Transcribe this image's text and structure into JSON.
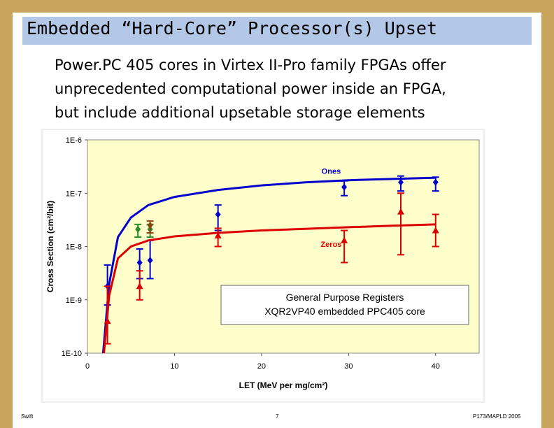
{
  "slide": {
    "title": "Embedded “Hard-Core” Processor(s) Upset",
    "body": "Power.PC 405 cores in Virtex II-Pro family FPGAs offer\nunprecedented computational power inside an FPGA,\nbut include additional upsetable storage elements",
    "footer_left": "Swift",
    "footer_center": "7",
    "footer_right": "P173/MAPLD 2005"
  },
  "colors": {
    "background_frame": "#c9a45c",
    "title_bar": "#b3c7e6",
    "plot_area": "#ffffcc",
    "ones": "#0000cc",
    "zeros": "#dd0000",
    "extra_green": "#2a8a2a",
    "extra_brown": "#8b4513"
  },
  "chart_data": {
    "type": "scatter",
    "xlabel": "LET (MeV per mg/cm²)",
    "ylabel": "Cross Section (cm²/bit)",
    "xlim": [
      0,
      45
    ],
    "ylim": [
      1e-10,
      1e-06
    ],
    "yscale": "log",
    "x_ticks": [
      0,
      10,
      20,
      30,
      40
    ],
    "x_tick_labels": [
      "0",
      "10",
      "20",
      "30",
      "40"
    ],
    "y_ticks": [
      1e-10,
      1e-09,
      1e-08,
      1e-07,
      1e-06
    ],
    "y_tick_labels": [
      "1E-10",
      "1E-9",
      "1E-8",
      "1E-7",
      "1E-6"
    ],
    "grid": false,
    "annotation": "General Purpose Registers\nXQR2VP40 embedded PPC405 core",
    "series": [
      {
        "name": "Ones",
        "color": "#0000cc",
        "marker": "diamond",
        "points": [
          {
            "x": 2.3,
            "y": 1.8e-09,
            "ylo": 8e-10,
            "yhi": 4.5e-09
          },
          {
            "x": 6.0,
            "y": 5e-09,
            "ylo": 2.5e-09,
            "yhi": 9e-09
          },
          {
            "x": 7.2,
            "y": 5.5e-09,
            "ylo": 2.5e-09,
            "yhi": 1.3e-08
          },
          {
            "x": 15.0,
            "y": 4e-08,
            "ylo": 2e-08,
            "yhi": 6e-08
          },
          {
            "x": 29.5,
            "y": 1.3e-07,
            "ylo": 9e-08,
            "yhi": 1.7e-07
          },
          {
            "x": 36.0,
            "y": 1.6e-07,
            "ylo": 1.1e-07,
            "yhi": 2.1e-07
          },
          {
            "x": 40.0,
            "y": 1.6e-07,
            "ylo": 1.1e-07,
            "yhi": 2e-07
          }
        ],
        "fit": [
          [
            1.8,
            1e-10
          ],
          [
            2.5,
            2e-09
          ],
          [
            3.5,
            1.5e-08
          ],
          [
            5,
            3.5e-08
          ],
          [
            7,
            6e-08
          ],
          [
            10,
            8.5e-08
          ],
          [
            15,
            1.15e-07
          ],
          [
            20,
            1.4e-07
          ],
          [
            25,
            1.6e-07
          ],
          [
            30,
            1.75e-07
          ],
          [
            35,
            1.85e-07
          ],
          [
            40,
            1.95e-07
          ]
        ]
      },
      {
        "name": "Zeros",
        "color": "#dd0000",
        "marker": "triangle",
        "points": [
          {
            "x": 2.3,
            "y": 4e-10,
            "ylo": 1.5e-10,
            "yhi": 1.8e-09
          },
          {
            "x": 6.0,
            "y": 1.8e-09,
            "ylo": 1e-09,
            "yhi": 3.5e-09
          },
          {
            "x": 15.0,
            "y": 1.6e-08,
            "ylo": 1e-08,
            "yhi": 2.2e-08
          },
          {
            "x": 29.5,
            "y": 1.3e-08,
            "ylo": 5e-09,
            "yhi": 2e-08
          },
          {
            "x": 36.0,
            "y": 4.5e-08,
            "ylo": 7e-09,
            "yhi": 1e-07
          },
          {
            "x": 40.0,
            "y": 2e-08,
            "ylo": 1e-08,
            "yhi": 4e-08
          }
        ],
        "fit": [
          [
            1.9,
            1e-10
          ],
          [
            2.5,
            1.2e-09
          ],
          [
            3.5,
            6e-09
          ],
          [
            5,
            1e-08
          ],
          [
            7,
            1.3e-08
          ],
          [
            10,
            1.55e-08
          ],
          [
            15,
            1.8e-08
          ],
          [
            20,
            2e-08
          ],
          [
            25,
            2.15e-08
          ],
          [
            30,
            2.3e-08
          ],
          [
            35,
            2.45e-08
          ],
          [
            40,
            2.6e-08
          ]
        ]
      },
      {
        "color": "#2a8a2a",
        "marker": "diamond",
        "points": [
          {
            "x": 5.8,
            "y": 2.1e-08,
            "ylo": 1.5e-08,
            "yhi": 2.6e-08
          },
          {
            "x": 7.2,
            "y": 2.1e-08,
            "ylo": 1.5e-08,
            "yhi": 2.6e-08
          }
        ]
      },
      {
        "color": "#8b4513",
        "marker": "diamond",
        "points": [
          {
            "x": 7.2,
            "y": 2.5e-08,
            "ylo": 1.8e-08,
            "yhi": 3e-08
          }
        ]
      }
    ]
  }
}
